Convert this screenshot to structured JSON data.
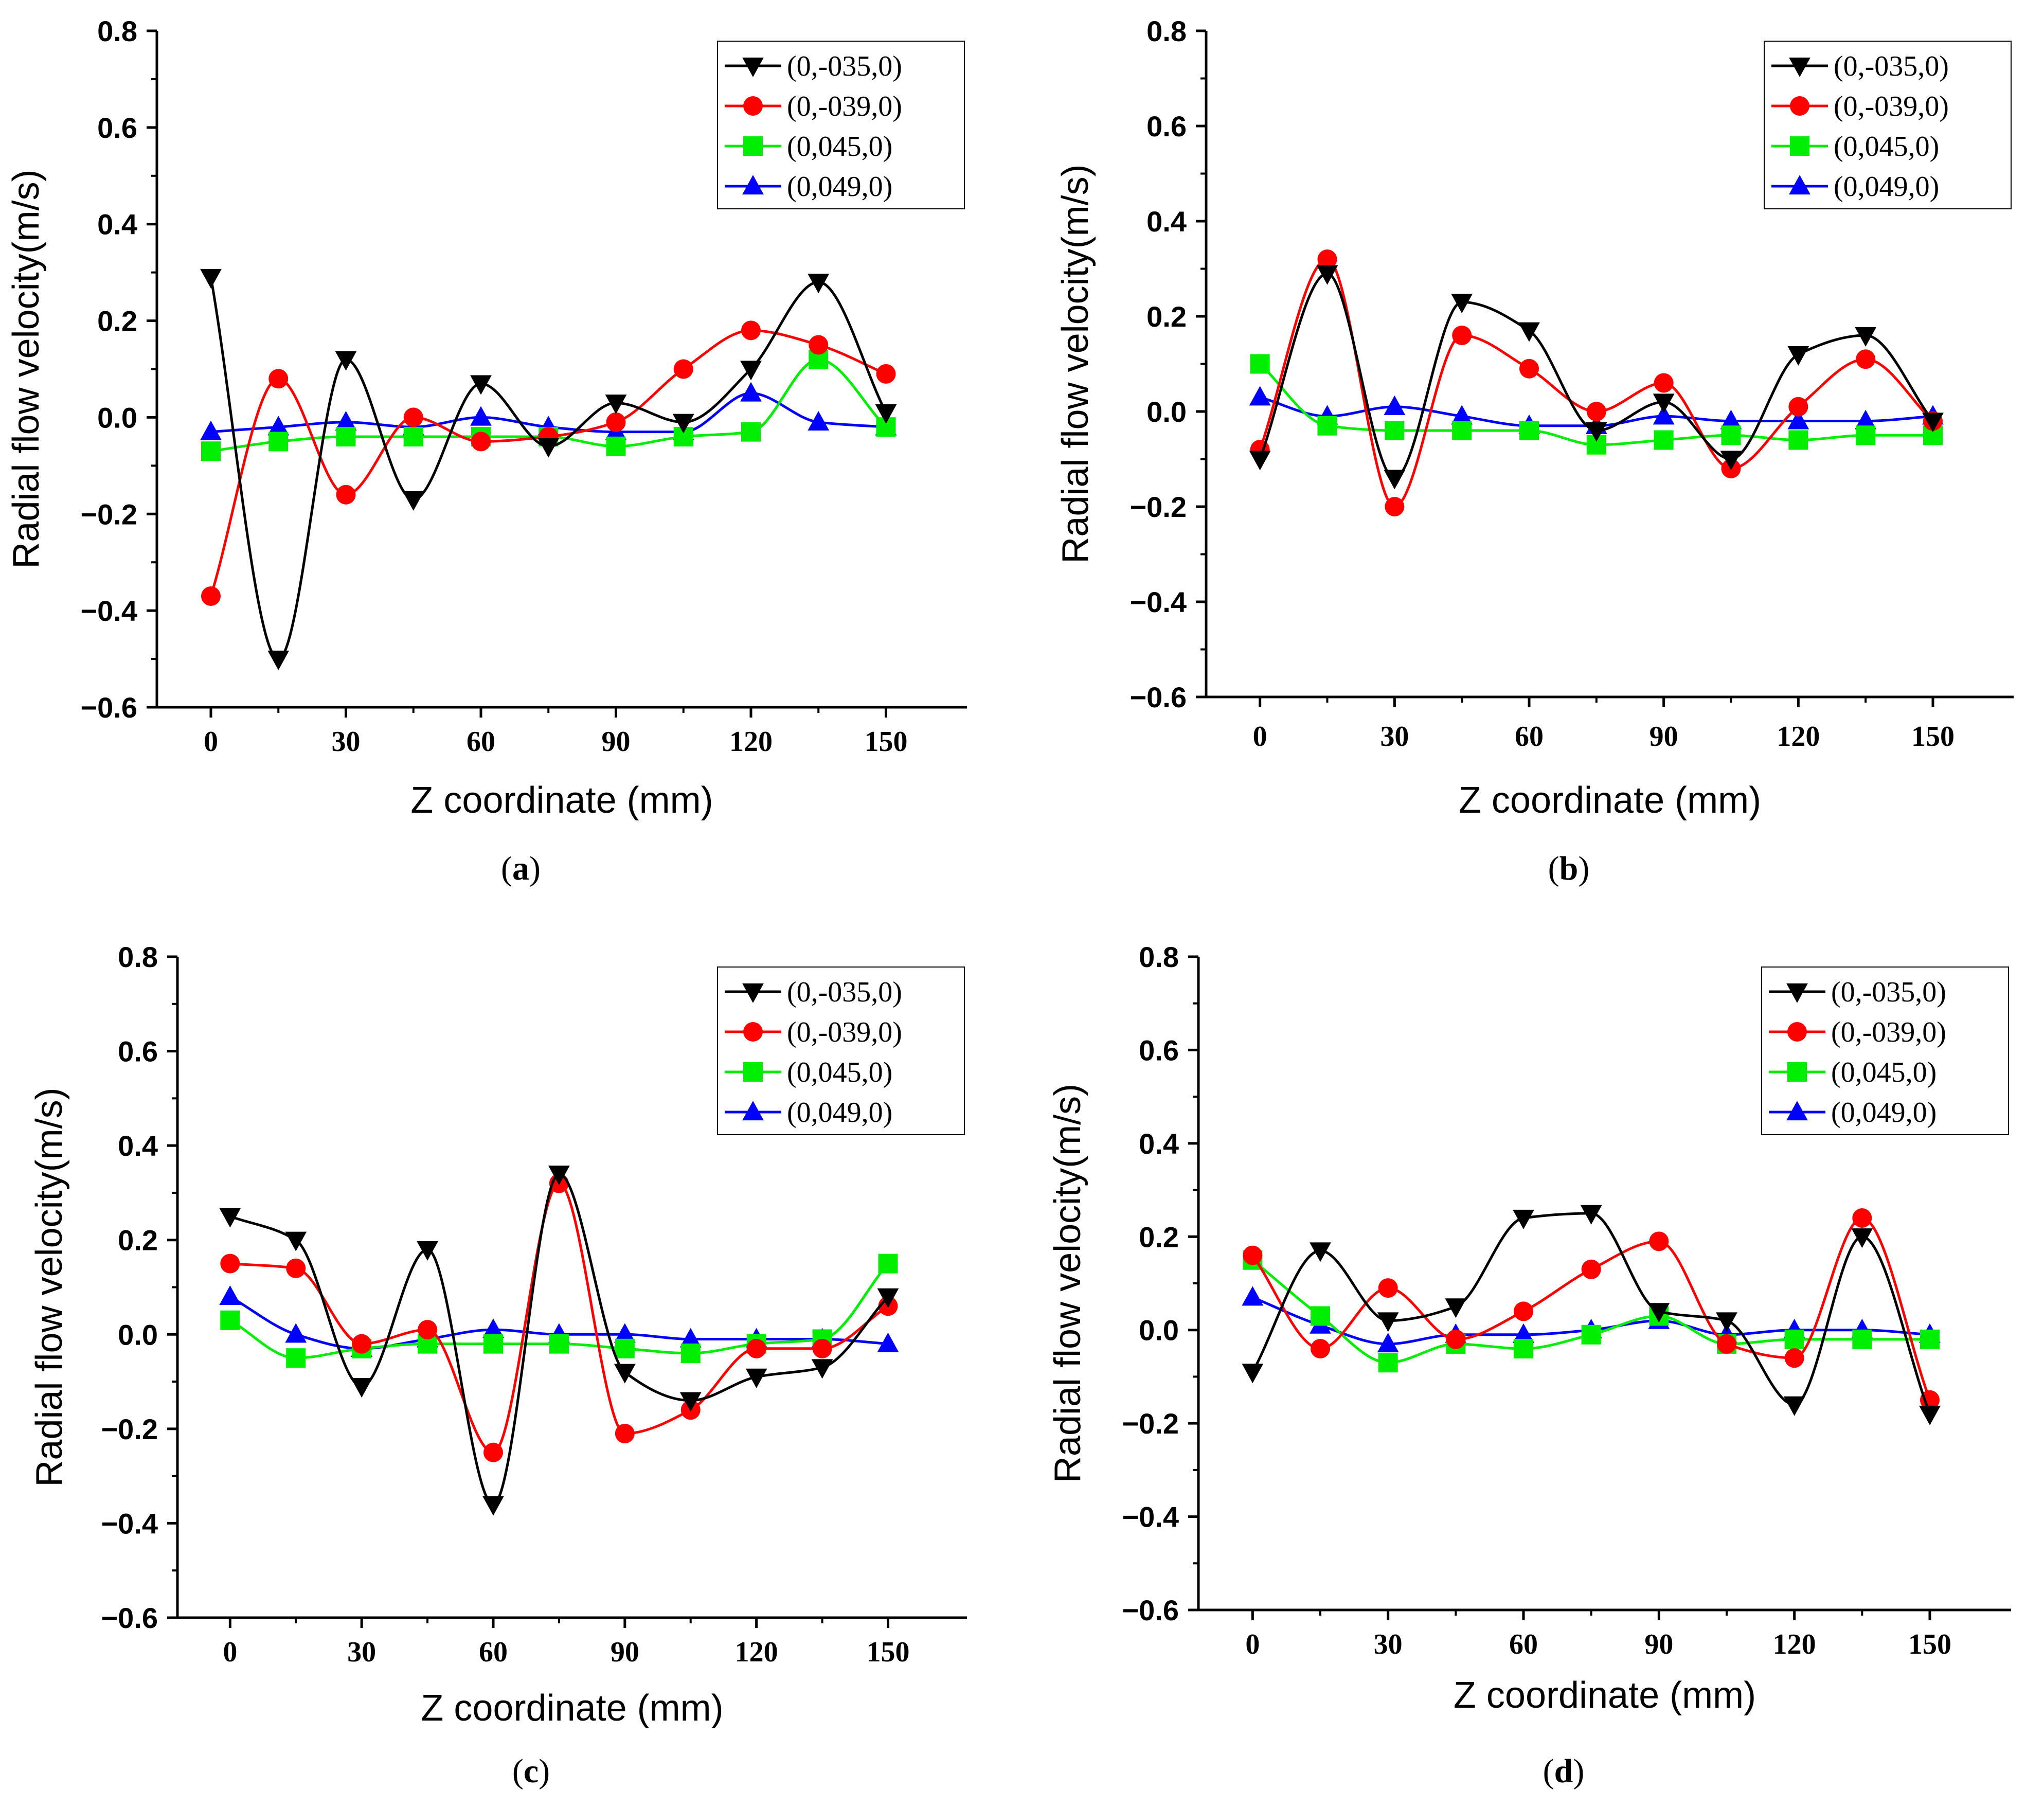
{
  "chart_data": [
    {
      "type": "line",
      "panel": "a",
      "caption_letter": "a",
      "title": "",
      "xlabel": "Z coordinate (mm)",
      "ylabel": "Radial flow velocity(m/s)",
      "xlim": [
        -12,
        168
      ],
      "ylim": [
        -0.6,
        0.8
      ],
      "xticks": [
        "0",
        "30",
        "60",
        "90",
        "120",
        "150"
      ],
      "yticks": [
        "−0.6",
        "−0.4",
        "−0.2",
        "0.0",
        "0.2",
        "0.4",
        "0.6",
        "0.8"
      ],
      "legend_position": "top-right",
      "x": [
        0,
        15,
        30,
        45,
        60,
        75,
        90,
        105,
        120,
        135,
        150
      ],
      "series": [
        {
          "name": "(0,-035,0)",
          "color": "#000000",
          "marker": "triangle-down",
          "values": [
            0.29,
            -0.5,
            0.12,
            -0.17,
            0.07,
            -0.06,
            0.03,
            -0.01,
            0.1,
            0.28,
            0.01
          ]
        },
        {
          "name": "(0,-039,0)",
          "color": "#ff0000",
          "marker": "circle",
          "values": [
            -0.37,
            0.08,
            -0.16,
            0.0,
            -0.05,
            -0.04,
            -0.01,
            0.1,
            0.18,
            0.15,
            0.09
          ]
        },
        {
          "name": "(0,045,0)",
          "color": "#00ee00",
          "marker": "square",
          "values": [
            -0.07,
            -0.05,
            -0.04,
            -0.04,
            -0.04,
            -0.04,
            -0.06,
            -0.04,
            -0.03,
            0.12,
            -0.02
          ]
        },
        {
          "name": "(0,049,0)",
          "color": "#0000ff",
          "marker": "triangle-up",
          "values": [
            -0.03,
            -0.02,
            -0.01,
            -0.02,
            0.0,
            -0.02,
            -0.03,
            -0.03,
            0.05,
            -0.01,
            -0.02
          ]
        }
      ]
    },
    {
      "type": "line",
      "panel": "b",
      "caption_letter": "b",
      "title": "",
      "xlabel": "Z coordinate (mm)",
      "ylabel": "Radial flow velocity(m/s)",
      "xlim": [
        -12,
        168
      ],
      "ylim": [
        -0.6,
        0.8
      ],
      "xticks": [
        "0",
        "30",
        "60",
        "90",
        "120",
        "150"
      ],
      "yticks": [
        "−0.6",
        "−0.4",
        "−0.2",
        "0.0",
        "0.2",
        "0.4",
        "0.6",
        "0.8"
      ],
      "legend_position": "top-right",
      "x": [
        0,
        15,
        30,
        45,
        60,
        75,
        90,
        105,
        120,
        135,
        150
      ],
      "series": [
        {
          "name": "(0,-035,0)",
          "color": "#000000",
          "marker": "triangle-down",
          "values": [
            -0.1,
            0.29,
            -0.14,
            0.23,
            0.17,
            -0.04,
            0.02,
            -0.1,
            0.12,
            0.16,
            -0.02
          ]
        },
        {
          "name": "(0,-039,0)",
          "color": "#ff0000",
          "marker": "circle",
          "values": [
            -0.08,
            0.32,
            -0.2,
            0.16,
            0.09,
            0.0,
            0.06,
            -0.12,
            0.01,
            0.11,
            -0.02
          ]
        },
        {
          "name": "(0,045,0)",
          "color": "#00ee00",
          "marker": "square",
          "values": [
            0.1,
            -0.03,
            -0.04,
            -0.04,
            -0.04,
            -0.07,
            -0.06,
            -0.05,
            -0.06,
            -0.05,
            -0.05
          ]
        },
        {
          "name": "(0,049,0)",
          "color": "#0000ff",
          "marker": "triangle-up",
          "values": [
            0.03,
            -0.01,
            0.01,
            -0.01,
            -0.03,
            -0.03,
            -0.01,
            -0.02,
            -0.02,
            -0.02,
            -0.01
          ]
        }
      ]
    },
    {
      "type": "line",
      "panel": "c",
      "caption_letter": "c",
      "title": "",
      "xlabel": "Z coordinate (mm)",
      "ylabel": "Radial flow velocity(m/s)",
      "xlim": [
        -12,
        168
      ],
      "ylim": [
        -0.6,
        0.8
      ],
      "xticks": [
        "0",
        "30",
        "60",
        "90",
        "120",
        "150"
      ],
      "yticks": [
        "−0.6",
        "−0.4",
        "−0.2",
        "0.0",
        "0.2",
        "0.4",
        "0.6",
        "0.8"
      ],
      "legend_position": "top-right",
      "x": [
        0,
        15,
        30,
        45,
        60,
        75,
        90,
        105,
        120,
        135,
        150
      ],
      "series": [
        {
          "name": "(0,-035,0)",
          "color": "#000000",
          "marker": "triangle-down",
          "values": [
            0.25,
            0.2,
            -0.11,
            0.18,
            -0.36,
            0.34,
            -0.08,
            -0.14,
            -0.09,
            -0.07,
            0.08
          ]
        },
        {
          "name": "(0,-039,0)",
          "color": "#ff0000",
          "marker": "circle",
          "values": [
            0.15,
            0.14,
            -0.02,
            0.01,
            -0.25,
            0.32,
            -0.21,
            -0.16,
            -0.03,
            -0.03,
            0.06
          ]
        },
        {
          "name": "(0,045,0)",
          "color": "#00ee00",
          "marker": "square",
          "values": [
            0.03,
            -0.05,
            -0.03,
            -0.02,
            -0.02,
            -0.02,
            -0.03,
            -0.04,
            -0.02,
            -0.01,
            0.15
          ]
        },
        {
          "name": "(0,049,0)",
          "color": "#0000ff",
          "marker": "triangle-up",
          "values": [
            0.08,
            0.0,
            -0.03,
            -0.01,
            0.01,
            0.0,
            0.0,
            -0.01,
            -0.01,
            -0.01,
            -0.02
          ]
        }
      ]
    },
    {
      "type": "line",
      "panel": "d",
      "caption_letter": "d",
      "title": "",
      "xlabel": "Z coordinate (mm)",
      "ylabel": "Radial flow velocity(m/s)",
      "xlim": [
        -12,
        168
      ],
      "ylim": [
        -0.6,
        0.8
      ],
      "xticks": [
        "0",
        "30",
        "60",
        "90",
        "120",
        "150"
      ],
      "yticks": [
        "−0.6",
        "−0.4",
        "−0.2",
        "0.0",
        "0.2",
        "0.4",
        "0.6",
        "0.8"
      ],
      "legend_position": "top-right",
      "x": [
        0,
        15,
        30,
        45,
        60,
        75,
        90,
        105,
        120,
        135,
        150
      ],
      "series": [
        {
          "name": "(0,-035,0)",
          "color": "#000000",
          "marker": "triangle-down",
          "values": [
            -0.09,
            0.17,
            0.02,
            0.05,
            0.24,
            0.25,
            0.04,
            0.02,
            -0.16,
            0.2,
            -0.18
          ]
        },
        {
          "name": "(0,-039,0)",
          "color": "#ff0000",
          "marker": "circle",
          "values": [
            0.16,
            -0.04,
            0.09,
            -0.02,
            0.04,
            0.13,
            0.19,
            -0.03,
            -0.06,
            0.24,
            -0.15
          ]
        },
        {
          "name": "(0,045,0)",
          "color": "#00ee00",
          "marker": "square",
          "values": [
            0.15,
            0.03,
            -0.07,
            -0.03,
            -0.04,
            -0.01,
            0.03,
            -0.03,
            -0.02,
            -0.02,
            -0.02
          ]
        },
        {
          "name": "(0,049,0)",
          "color": "#0000ff",
          "marker": "triangle-up",
          "values": [
            0.07,
            0.01,
            -0.03,
            -0.01,
            -0.01,
            0.0,
            0.02,
            -0.01,
            0.0,
            0.0,
            -0.01
          ]
        }
      ]
    }
  ]
}
